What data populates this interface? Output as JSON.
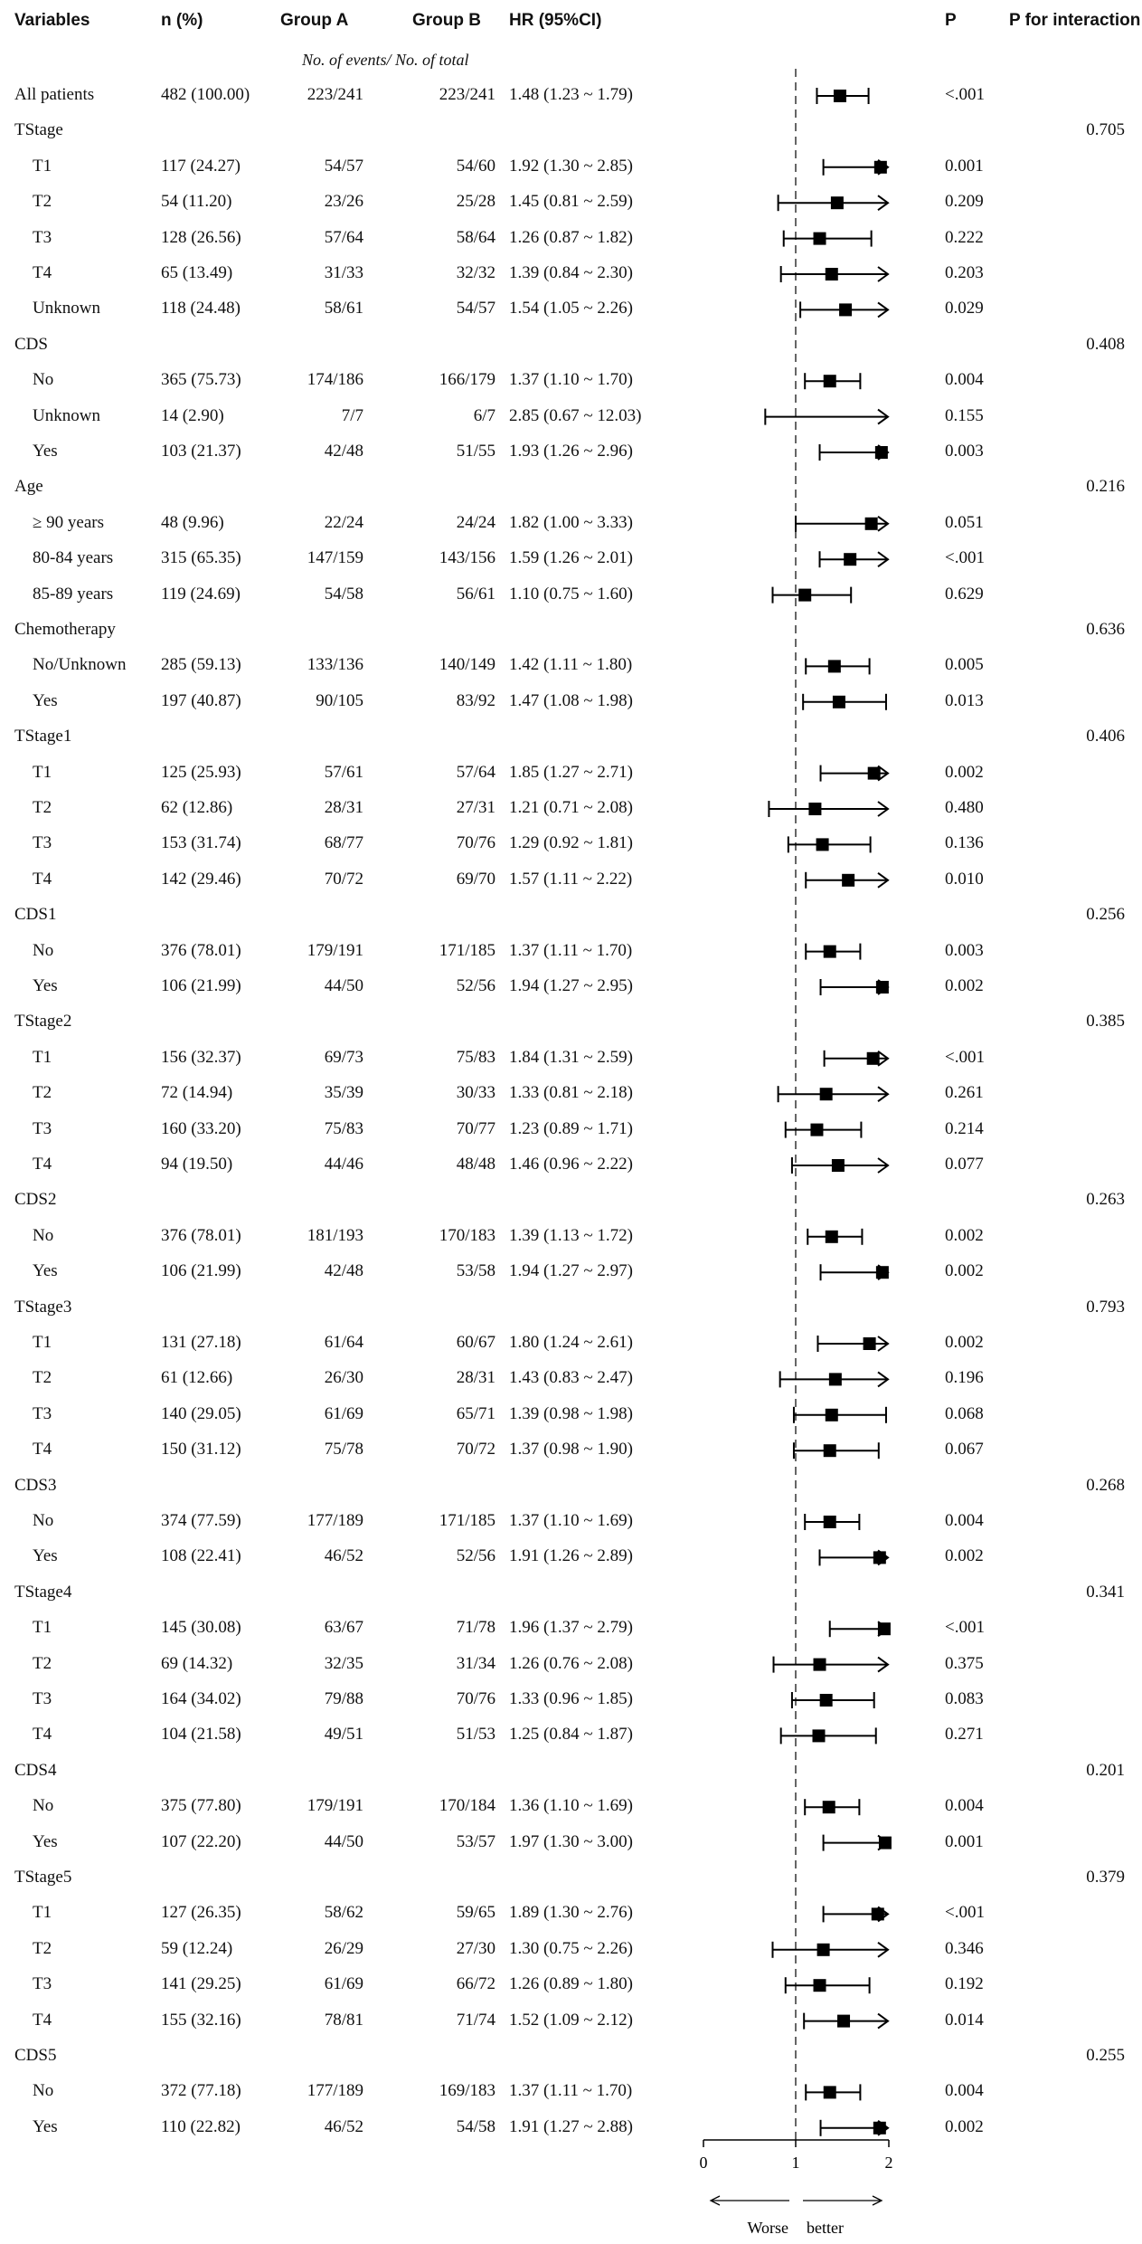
{
  "headers": {
    "variables": "Variables",
    "n": "n (%)",
    "group_a": "Group A",
    "group_b": "Group B",
    "hr": "HR (95%CI)",
    "p": "P",
    "p_interaction": "P for interaction",
    "events_note": "No. of events/ No. of total"
  },
  "rows": [
    {
      "label": "All patients",
      "n": "482 (100.00)",
      "a": "223/241",
      "b": "223/241",
      "hr": "1.48 (1.23 ~ 1.79)",
      "p": "<.001",
      "pint": ""
    },
    {
      "label": "TStage",
      "n": "",
      "a": "",
      "b": "",
      "hr": "",
      "p": "",
      "pint": "0.705"
    },
    {
      "label": "T1",
      "n": "117 (24.27)",
      "a": "54/57",
      "b": "54/60",
      "hr": "1.92 (1.30 ~ 2.85)",
      "p": "0.001",
      "pint": "",
      "sub": true
    },
    {
      "label": "T2",
      "n": "54 (11.20)",
      "a": "23/26",
      "b": "25/28",
      "hr": "1.45 (0.81 ~ 2.59)",
      "p": "0.209",
      "pint": "",
      "sub": true
    },
    {
      "label": "T3",
      "n": "128 (26.56)",
      "a": "57/64",
      "b": "58/64",
      "hr": "1.26 (0.87 ~ 1.82)",
      "p": "0.222",
      "pint": "",
      "sub": true
    },
    {
      "label": "T4",
      "n": "65 (13.49)",
      "a": "31/33",
      "b": "32/32",
      "hr": "1.39 (0.84 ~ 2.30)",
      "p": "0.203",
      "pint": "",
      "sub": true
    },
    {
      "label": "Unknown",
      "n": "118 (24.48)",
      "a": "58/61",
      "b": "54/57",
      "hr": "1.54 (1.05 ~ 2.26)",
      "p": "0.029",
      "pint": "",
      "sub": true
    },
    {
      "label": "CDS",
      "n": "",
      "a": "",
      "b": "",
      "hr": "",
      "p": "",
      "pint": "0.408"
    },
    {
      "label": "No",
      "n": "365 (75.73)",
      "a": "174/186",
      "b": "166/179",
      "hr": "1.37 (1.10 ~ 1.70)",
      "p": "0.004",
      "pint": "",
      "sub": true
    },
    {
      "label": "Unknown",
      "n": "14 (2.90)",
      "a": "7/7",
      "b": "6/7",
      "hr": "2.85 (0.67 ~ 12.03)",
      "p": "0.155",
      "pint": "",
      "sub": true
    },
    {
      "label": "Yes",
      "n": "103 (21.37)",
      "a": "42/48",
      "b": "51/55",
      "hr": "1.93 (1.26 ~ 2.96)",
      "p": "0.003",
      "pint": "",
      "sub": true
    },
    {
      "label": "Age",
      "n": "",
      "a": "",
      "b": "",
      "hr": "",
      "p": "",
      "pint": "0.216"
    },
    {
      "label": "≥ 90 years",
      "n": "48 (9.96)",
      "a": "22/24",
      "b": "24/24",
      "hr": "1.82 (1.00 ~ 3.33)",
      "p": "0.051",
      "pint": "",
      "sub": true
    },
    {
      "label": "80-84 years",
      "n": "315 (65.35)",
      "a": "147/159",
      "b": "143/156",
      "hr": "1.59 (1.26 ~ 2.01)",
      "p": "<.001",
      "pint": "",
      "sub": true
    },
    {
      "label": "85-89 years",
      "n": "119 (24.69)",
      "a": "54/58",
      "b": "56/61",
      "hr": "1.10 (0.75 ~ 1.60)",
      "p": "0.629",
      "pint": "",
      "sub": true
    },
    {
      "label": "Chemotherapy",
      "n": "",
      "a": "",
      "b": "",
      "hr": "",
      "p": "",
      "pint": "0.636"
    },
    {
      "label": "No/Unknown",
      "n": "285 (59.13)",
      "a": "133/136",
      "b": "140/149",
      "hr": "1.42 (1.11 ~ 1.80)",
      "p": "0.005",
      "pint": "",
      "sub": true
    },
    {
      "label": "Yes",
      "n": "197 (40.87)",
      "a": "90/105",
      "b": "83/92",
      "hr": "1.47 (1.08 ~ 1.98)",
      "p": "0.013",
      "pint": "",
      "sub": true
    },
    {
      "label": "TStage1",
      "n": "",
      "a": "",
      "b": "",
      "hr": "",
      "p": "",
      "pint": "0.406"
    },
    {
      "label": "T1",
      "n": "125 (25.93)",
      "a": "57/61",
      "b": "57/64",
      "hr": "1.85 (1.27 ~ 2.71)",
      "p": "0.002",
      "pint": "",
      "sub": true
    },
    {
      "label": "T2",
      "n": "62 (12.86)",
      "a": "28/31",
      "b": "27/31",
      "hr": "1.21 (0.71 ~ 2.08)",
      "p": "0.480",
      "pint": "",
      "sub": true
    },
    {
      "label": "T3",
      "n": "153 (31.74)",
      "a": "68/77",
      "b": "70/76",
      "hr": "1.29 (0.92 ~ 1.81)",
      "p": "0.136",
      "pint": "",
      "sub": true
    },
    {
      "label": "T4",
      "n": "142 (29.46)",
      "a": "70/72",
      "b": "69/70",
      "hr": "1.57 (1.11 ~ 2.22)",
      "p": "0.010",
      "pint": "",
      "sub": true
    },
    {
      "label": "CDS1",
      "n": "",
      "a": "",
      "b": "",
      "hr": "",
      "p": "",
      "pint": "0.256"
    },
    {
      "label": "No",
      "n": "376 (78.01)",
      "a": "179/191",
      "b": "171/185",
      "hr": "1.37 (1.11 ~ 1.70)",
      "p": "0.003",
      "pint": "",
      "sub": true
    },
    {
      "label": "Yes",
      "n": "106 (21.99)",
      "a": "44/50",
      "b": "52/56",
      "hr": "1.94 (1.27 ~ 2.95)",
      "p": "0.002",
      "pint": "",
      "sub": true
    },
    {
      "label": "TStage2",
      "n": "",
      "a": "",
      "b": "",
      "hr": "",
      "p": "",
      "pint": "0.385"
    },
    {
      "label": "T1",
      "n": "156 (32.37)",
      "a": "69/73",
      "b": "75/83",
      "hr": "1.84 (1.31 ~ 2.59)",
      "p": "<.001",
      "pint": "",
      "sub": true
    },
    {
      "label": "T2",
      "n": "72 (14.94)",
      "a": "35/39",
      "b": "30/33",
      "hr": "1.33 (0.81 ~ 2.18)",
      "p": "0.261",
      "pint": "",
      "sub": true
    },
    {
      "label": "T3",
      "n": "160 (33.20)",
      "a": "75/83",
      "b": "70/77",
      "hr": "1.23 (0.89 ~ 1.71)",
      "p": "0.214",
      "pint": "",
      "sub": true
    },
    {
      "label": "T4",
      "n": "94 (19.50)",
      "a": "44/46",
      "b": "48/48",
      "hr": "1.46 (0.96 ~ 2.22)",
      "p": "0.077",
      "pint": "",
      "sub": true
    },
    {
      "label": "CDS2",
      "n": "",
      "a": "",
      "b": "",
      "hr": "",
      "p": "",
      "pint": "0.263"
    },
    {
      "label": "No",
      "n": "376 (78.01)",
      "a": "181/193",
      "b": "170/183",
      "hr": "1.39 (1.13 ~ 1.72)",
      "p": "0.002",
      "pint": "",
      "sub": true
    },
    {
      "label": "Yes",
      "n": "106 (21.99)",
      "a": "42/48",
      "b": "53/58",
      "hr": "1.94 (1.27 ~ 2.97)",
      "p": "0.002",
      "pint": "",
      "sub": true
    },
    {
      "label": "TStage3",
      "n": "",
      "a": "",
      "b": "",
      "hr": "",
      "p": "",
      "pint": "0.793"
    },
    {
      "label": "T1",
      "n": "131 (27.18)",
      "a": "61/64",
      "b": "60/67",
      "hr": "1.80 (1.24 ~ 2.61)",
      "p": "0.002",
      "pint": "",
      "sub": true
    },
    {
      "label": "T2",
      "n": "61 (12.66)",
      "a": "26/30",
      "b": "28/31",
      "hr": "1.43 (0.83 ~ 2.47)",
      "p": "0.196",
      "pint": "",
      "sub": true
    },
    {
      "label": "T3",
      "n": "140 (29.05)",
      "a": "61/69",
      "b": "65/71",
      "hr": "1.39 (0.98 ~ 1.98)",
      "p": "0.068",
      "pint": "",
      "sub": true
    },
    {
      "label": "T4",
      "n": "150 (31.12)",
      "a": "75/78",
      "b": "70/72",
      "hr": "1.37 (0.98 ~ 1.90)",
      "p": "0.067",
      "pint": "",
      "sub": true
    },
    {
      "label": "CDS3",
      "n": "",
      "a": "",
      "b": "",
      "hr": "",
      "p": "",
      "pint": "0.268"
    },
    {
      "label": "No",
      "n": "374 (77.59)",
      "a": "177/189",
      "b": "171/185",
      "hr": "1.37 (1.10 ~ 1.69)",
      "p": "0.004",
      "pint": "",
      "sub": true
    },
    {
      "label": "Yes",
      "n": "108 (22.41)",
      "a": "46/52",
      "b": "52/56",
      "hr": "1.91 (1.26 ~ 2.89)",
      "p": "0.002",
      "pint": "",
      "sub": true
    },
    {
      "label": "TStage4",
      "n": "",
      "a": "",
      "b": "",
      "hr": "",
      "p": "",
      "pint": "0.341"
    },
    {
      "label": "T1",
      "n": "145 (30.08)",
      "a": "63/67",
      "b": "71/78",
      "hr": "1.96 (1.37 ~ 2.79)",
      "p": "<.001",
      "pint": "",
      "sub": true
    },
    {
      "label": "T2",
      "n": "69 (14.32)",
      "a": "32/35",
      "b": "31/34",
      "hr": "1.26 (0.76 ~ 2.08)",
      "p": "0.375",
      "pint": "",
      "sub": true
    },
    {
      "label": "T3",
      "n": "164 (34.02)",
      "a": "79/88",
      "b": "70/76",
      "hr": "1.33 (0.96 ~ 1.85)",
      "p": "0.083",
      "pint": "",
      "sub": true
    },
    {
      "label": "T4",
      "n": "104 (21.58)",
      "a": "49/51",
      "b": "51/53",
      "hr": "1.25 (0.84 ~ 1.87)",
      "p": "0.271",
      "pint": "",
      "sub": true
    },
    {
      "label": "CDS4",
      "n": "",
      "a": "",
      "b": "",
      "hr": "",
      "p": "",
      "pint": "0.201"
    },
    {
      "label": "No",
      "n": "375 (77.80)",
      "a": "179/191",
      "b": "170/184",
      "hr": "1.36 (1.10 ~ 1.69)",
      "p": "0.004",
      "pint": "",
      "sub": true
    },
    {
      "label": "Yes",
      "n": "107 (22.20)",
      "a": "44/50",
      "b": "53/57",
      "hr": "1.97 (1.30 ~ 3.00)",
      "p": "0.001",
      "pint": "",
      "sub": true
    },
    {
      "label": "TStage5",
      "n": "",
      "a": "",
      "b": "",
      "hr": "",
      "p": "",
      "pint": "0.379"
    },
    {
      "label": "T1",
      "n": "127 (26.35)",
      "a": "58/62",
      "b": "59/65",
      "hr": "1.89 (1.30 ~ 2.76)",
      "p": "<.001",
      "pint": "",
      "sub": true
    },
    {
      "label": "T2",
      "n": "59 (12.24)",
      "a": "26/29",
      "b": "27/30",
      "hr": "1.30 (0.75 ~ 2.26)",
      "p": "0.346",
      "pint": "",
      "sub": true
    },
    {
      "label": "T3",
      "n": "141 (29.25)",
      "a": "61/69",
      "b": "66/72",
      "hr": "1.26 (0.89 ~ 1.80)",
      "p": "0.192",
      "pint": "",
      "sub": true
    },
    {
      "label": "T4",
      "n": "155 (32.16)",
      "a": "78/81",
      "b": "71/74",
      "hr": "1.52 (1.09 ~ 2.12)",
      "p": "0.014",
      "pint": "",
      "sub": true
    },
    {
      "label": "CDS5",
      "n": "",
      "a": "",
      "b": "",
      "hr": "",
      "p": "",
      "pint": "0.255"
    },
    {
      "label": "No",
      "n": "372 (77.18)",
      "a": "177/189",
      "b": "169/183",
      "hr": "1.37 (1.11 ~ 1.70)",
      "p": "0.004",
      "pint": "",
      "sub": true
    },
    {
      "label": "Yes",
      "n": "110 (22.82)",
      "a": "46/52",
      "b": "54/58",
      "hr": "1.91 (1.27 ~ 2.88)",
      "p": "0.002",
      "pint": "",
      "sub": true
    }
  ],
  "chart_data": {
    "type": "forest",
    "xlim": [
      0,
      2
    ],
    "xticks": [
      "0",
      "1",
      "2"
    ],
    "reference_line": 1,
    "xlabel_left": "Worse",
    "xlabel_right": "better",
    "series": [
      {
        "name": "All patients",
        "hr": 1.48,
        "lo": 1.23,
        "hi": 1.79
      },
      {
        "name": "TStage T1",
        "hr": 1.92,
        "lo": 1.3,
        "hi": 2.85
      },
      {
        "name": "TStage T2",
        "hr": 1.45,
        "lo": 0.81,
        "hi": 2.59
      },
      {
        "name": "TStage T3",
        "hr": 1.26,
        "lo": 0.87,
        "hi": 1.82
      },
      {
        "name": "TStage T4",
        "hr": 1.39,
        "lo": 0.84,
        "hi": 2.3
      },
      {
        "name": "TStage Unknown",
        "hr": 1.54,
        "lo": 1.05,
        "hi": 2.26
      },
      {
        "name": "CDS No",
        "hr": 1.37,
        "lo": 1.1,
        "hi": 1.7
      },
      {
        "name": "CDS Unknown",
        "hr": 2.85,
        "lo": 0.67,
        "hi": 12.03
      },
      {
        "name": "CDS Yes",
        "hr": 1.93,
        "lo": 1.26,
        "hi": 2.96
      },
      {
        "name": "Age ≥ 90 years",
        "hr": 1.82,
        "lo": 1.0,
        "hi": 3.33
      },
      {
        "name": "Age 80-84 years",
        "hr": 1.59,
        "lo": 1.26,
        "hi": 2.01
      },
      {
        "name": "Age 85-89 years",
        "hr": 1.1,
        "lo": 0.75,
        "hi": 1.6
      },
      {
        "name": "Chemotherapy No/Unknown",
        "hr": 1.42,
        "lo": 1.11,
        "hi": 1.8
      },
      {
        "name": "Chemotherapy Yes",
        "hr": 1.47,
        "lo": 1.08,
        "hi": 1.98
      },
      {
        "name": "TStage1 T1",
        "hr": 1.85,
        "lo": 1.27,
        "hi": 2.71
      },
      {
        "name": "TStage1 T2",
        "hr": 1.21,
        "lo": 0.71,
        "hi": 2.08
      },
      {
        "name": "TStage1 T3",
        "hr": 1.29,
        "lo": 0.92,
        "hi": 1.81
      },
      {
        "name": "TStage1 T4",
        "hr": 1.57,
        "lo": 1.11,
        "hi": 2.22
      },
      {
        "name": "CDS1 No",
        "hr": 1.37,
        "lo": 1.11,
        "hi": 1.7
      },
      {
        "name": "CDS1 Yes",
        "hr": 1.94,
        "lo": 1.27,
        "hi": 2.95
      },
      {
        "name": "TStage2 T1",
        "hr": 1.84,
        "lo": 1.31,
        "hi": 2.59
      },
      {
        "name": "TStage2 T2",
        "hr": 1.33,
        "lo": 0.81,
        "hi": 2.18
      },
      {
        "name": "TStage2 T3",
        "hr": 1.23,
        "lo": 0.89,
        "hi": 1.71
      },
      {
        "name": "TStage2 T4",
        "hr": 1.46,
        "lo": 0.96,
        "hi": 2.22
      },
      {
        "name": "CDS2 No",
        "hr": 1.39,
        "lo": 1.13,
        "hi": 1.72
      },
      {
        "name": "CDS2 Yes",
        "hr": 1.94,
        "lo": 1.27,
        "hi": 2.97
      },
      {
        "name": "TStage3 T1",
        "hr": 1.8,
        "lo": 1.24,
        "hi": 2.61
      },
      {
        "name": "TStage3 T2",
        "hr": 1.43,
        "lo": 0.83,
        "hi": 2.47
      },
      {
        "name": "TStage3 T3",
        "hr": 1.39,
        "lo": 0.98,
        "hi": 1.98
      },
      {
        "name": "TStage3 T4",
        "hr": 1.37,
        "lo": 0.98,
        "hi": 1.9
      },
      {
        "name": "CDS3 No",
        "hr": 1.37,
        "lo": 1.1,
        "hi": 1.69
      },
      {
        "name": "CDS3 Yes",
        "hr": 1.91,
        "lo": 1.26,
        "hi": 2.89
      },
      {
        "name": "TStage4 T1",
        "hr": 1.96,
        "lo": 1.37,
        "hi": 2.79
      },
      {
        "name": "TStage4 T2",
        "hr": 1.26,
        "lo": 0.76,
        "hi": 2.08
      },
      {
        "name": "TStage4 T3",
        "hr": 1.33,
        "lo": 0.96,
        "hi": 1.85
      },
      {
        "name": "TStage4 T4",
        "hr": 1.25,
        "lo": 0.84,
        "hi": 1.87
      },
      {
        "name": "CDS4 No",
        "hr": 1.36,
        "lo": 1.1,
        "hi": 1.69
      },
      {
        "name": "CDS4 Yes",
        "hr": 1.97,
        "lo": 1.3,
        "hi": 3.0
      },
      {
        "name": "TStage5 T1",
        "hr": 1.89,
        "lo": 1.3,
        "hi": 2.76
      },
      {
        "name": "TStage5 T2",
        "hr": 1.3,
        "lo": 0.75,
        "hi": 2.26
      },
      {
        "name": "TStage5 T3",
        "hr": 1.26,
        "lo": 0.89,
        "hi": 1.8
      },
      {
        "name": "TStage5 T4",
        "hr": 1.52,
        "lo": 1.09,
        "hi": 2.12
      },
      {
        "name": "CDS5 No",
        "hr": 1.37,
        "lo": 1.11,
        "hi": 1.7
      },
      {
        "name": "CDS5 Yes",
        "hr": 1.91,
        "lo": 1.27,
        "hi": 2.88
      }
    ]
  }
}
